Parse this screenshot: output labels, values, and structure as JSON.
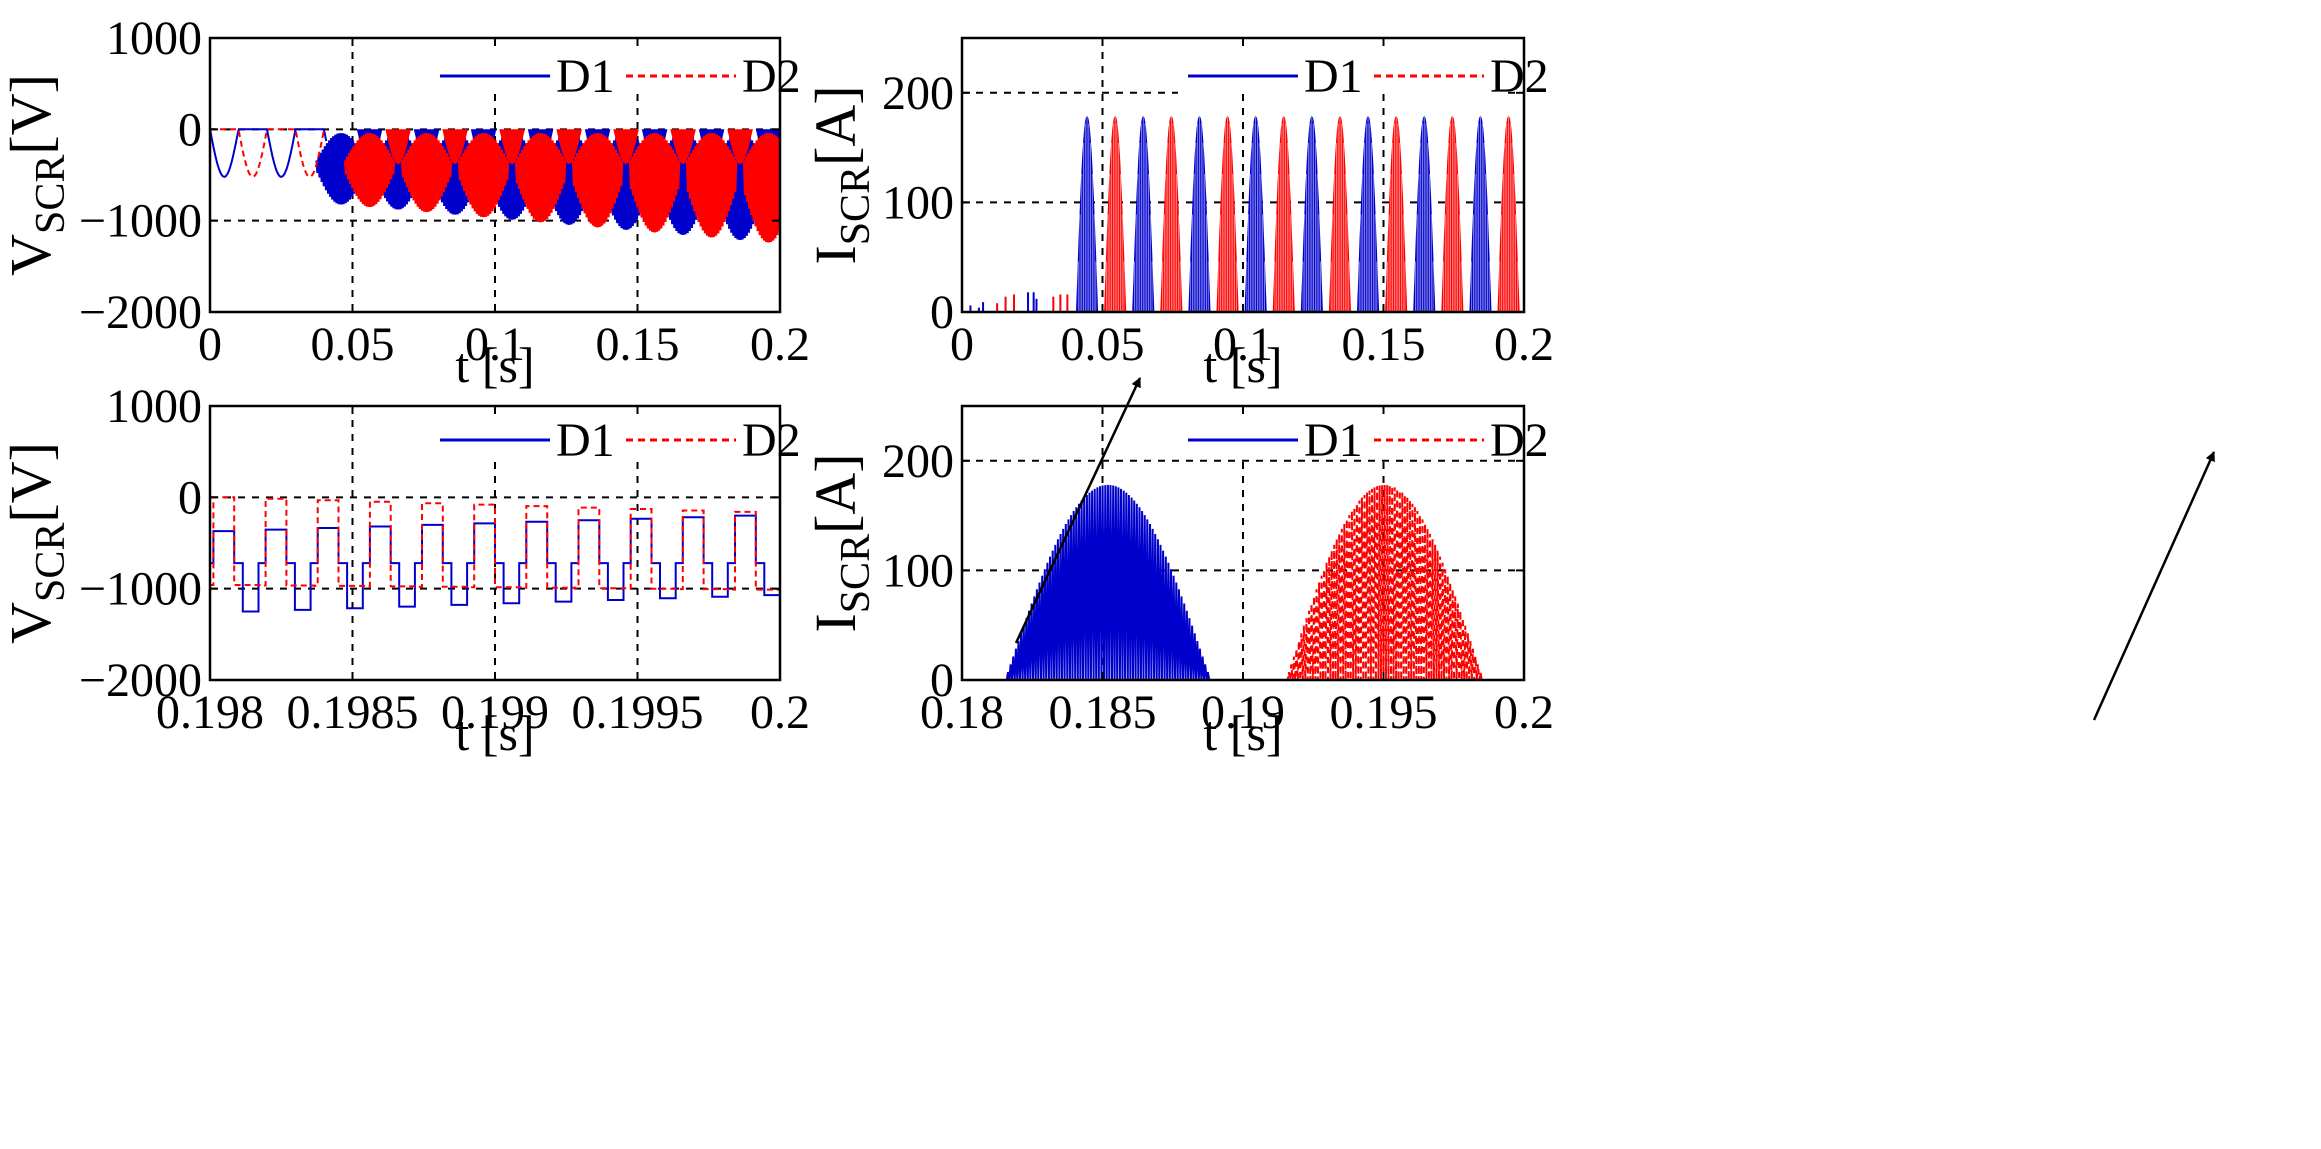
{
  "colors": {
    "d1": "#0000cc",
    "d2": "#ff0000",
    "axis": "#000000",
    "arrow": "#000000"
  },
  "chart_data": [
    {
      "id": "top-left",
      "type": "line",
      "ylabel": {
        "main": "V",
        "sub": "SCR",
        "unit": "[V]"
      },
      "xlabel": "t [s]",
      "xlim": [
        0,
        0.2
      ],
      "ylim": [
        -2000,
        1000
      ],
      "xticks": [
        0,
        0.05,
        0.1,
        0.15,
        0.2
      ],
      "xtick_labels": [
        "0",
        "0.05",
        "0.1",
        "0.15",
        "0.2"
      ],
      "yticks": [
        -2000,
        -1000,
        0,
        1000
      ],
      "ytick_labels": [
        "−2000",
        "−1000",
        "0",
        "1000"
      ],
      "legend": [
        {
          "name": "D1",
          "style": "solid"
        },
        {
          "name": "D2",
          "style": "dashed"
        }
      ],
      "series": [
        {
          "name": "D1",
          "description": "Before 0.04 s: inverted half-sine troughs of about -520 V every 20 ms; after 0.04 s: dense high-frequency switching bursts between 0 V and about -800 V growing to about -1250 V at 0.2 s"
        },
        {
          "name": "D2",
          "description": "Same waveform shifted by 10 ms (complementary half-cycles)"
        }
      ]
    },
    {
      "id": "top-right",
      "type": "line",
      "ylabel": {
        "main": "I",
        "sub": "SCR",
        "unit": "[A]"
      },
      "xlabel": "t [s]",
      "xlim": [
        0,
        0.2
      ],
      "ylim": [
        0,
        250
      ],
      "xticks": [
        0,
        0.05,
        0.1,
        0.15,
        0.2
      ],
      "xtick_labels": [
        "0",
        "0.05",
        "0.1",
        "0.15",
        "0.2"
      ],
      "yticks": [
        0,
        100,
        200
      ],
      "ytick_labels": [
        "0",
        "100",
        "200"
      ],
      "legend": [
        {
          "name": "D1",
          "style": "solid"
        },
        {
          "name": "D2",
          "style": "dashed"
        }
      ],
      "series": [
        {
          "name": "D1",
          "description": "Small pulses below 20 A before 0.04 s, then filled half-sine current lobes peaking at about 178 A every 20 ms starting near 0.045 s"
        },
        {
          "name": "D2",
          "description": "Same lobes shifted by 10 ms, peaking at about 178 A"
        }
      ]
    },
    {
      "id": "bottom-left",
      "type": "line",
      "ylabel": {
        "main": "V",
        "sub": "SCR",
        "unit": "[V]"
      },
      "xlabel": "t [s]",
      "xlim": [
        0.198,
        0.2
      ],
      "ylim": [
        -2000,
        1000
      ],
      "xticks": [
        0.198,
        0.1985,
        0.199,
        0.1995,
        0.2
      ],
      "xtick_labels": [
        "0.198",
        "0.1985",
        "0.199",
        "0.1995",
        "0.2"
      ],
      "yticks": [
        -2000,
        -1000,
        0,
        1000
      ],
      "ytick_labels": [
        "−2000",
        "−1000",
        "0",
        "1000"
      ],
      "legend": [
        {
          "name": "D1",
          "style": "solid"
        },
        {
          "name": "D2",
          "style": "dashed"
        }
      ],
      "series": [
        {
          "name": "D1",
          "description": "Zoomed switching waveform (period about 0.18 ms): levels near -370..-200 V, about -720 V and about -1250 V"
        },
        {
          "name": "D2",
          "description": "Complementary square waveform: levels near 0..-180 V and about -960..-1010 V"
        }
      ]
    },
    {
      "id": "bottom-right",
      "type": "line",
      "ylabel": {
        "main": "I",
        "sub": "SCR",
        "unit": "[A]"
      },
      "xlabel": "t [s]",
      "xlim": [
        0.18,
        0.2
      ],
      "ylim": [
        0,
        250
      ],
      "xticks": [
        0.18,
        0.185,
        0.19,
        0.195,
        0.2
      ],
      "xtick_labels": [
        "0.18",
        "0.185",
        "0.19",
        "0.195",
        "0.2"
      ],
      "yticks": [
        0,
        100,
        200
      ],
      "ytick_labels": [
        "0",
        "100",
        "200"
      ],
      "legend": [
        {
          "name": "D1",
          "style": "solid"
        },
        {
          "name": "D2",
          "style": "dashed"
        }
      ],
      "series": [
        {
          "name": "D1",
          "description": "Chopped current pulses under a half-sine envelope from 0.1815 s to 0.1888 s, peak about 178 A at 0.185 s"
        },
        {
          "name": "D2",
          "description": "Chopped current pulses under a half-sine envelope from 0.1915 s to 0.1985 s, peak about 178 A at 0.195 s"
        }
      ]
    }
  ]
}
